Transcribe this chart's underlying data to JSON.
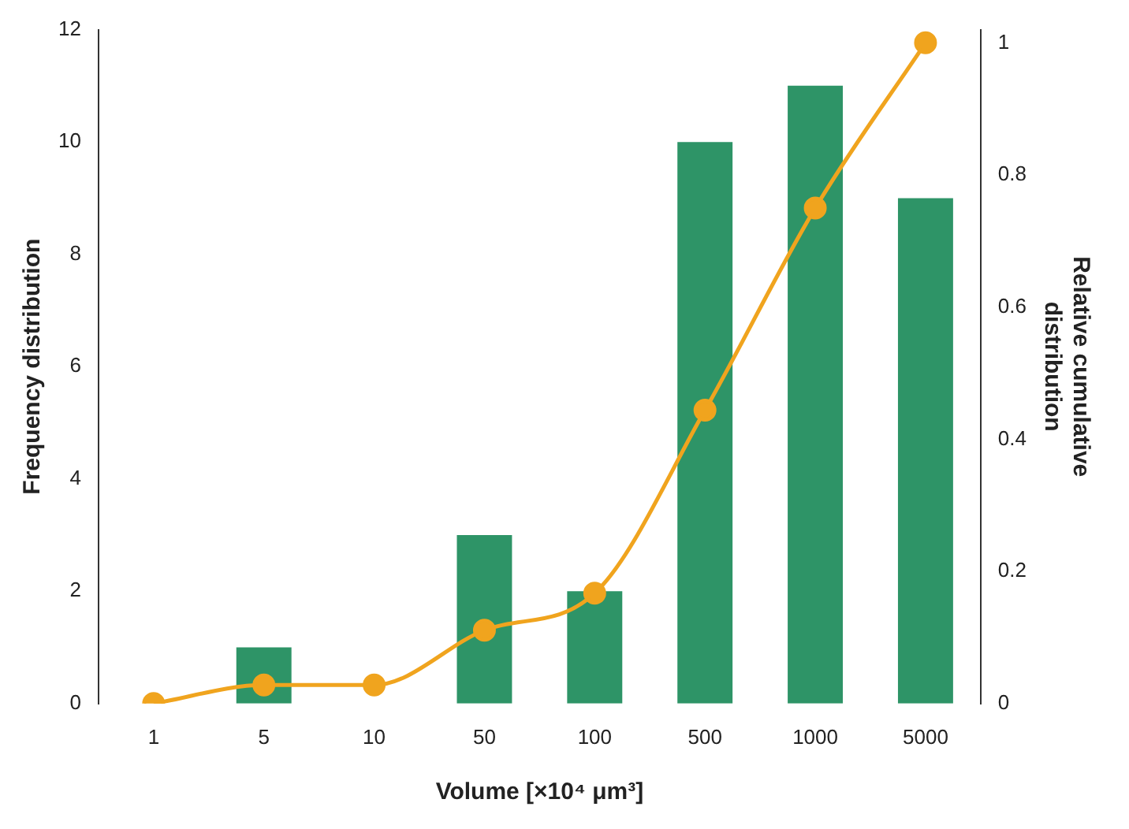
{
  "chart_data": {
    "type": "bar",
    "xlabel": "Volume [×10⁴ μm³]",
    "ylabel": "Frequency distribution",
    "y2label": "Relative cumulative\ndistribution",
    "categories": [
      "1",
      "5",
      "10",
      "50",
      "100",
      "500",
      "1000",
      "5000"
    ],
    "series": [
      {
        "color": "#2e9467",
        "values": [
          0,
          1,
          0,
          3,
          2,
          10,
          11,
          9
        ]
      },
      {
        "type": "line",
        "axis": "y2",
        "color": "#f0a41e",
        "marker": "circle",
        "values": [
          0,
          0.028,
          0.028,
          0.111,
          0.167,
          0.444,
          0.75,
          1
        ]
      }
    ],
    "ylim": [
      0,
      12
    ],
    "yticks": [
      0,
      2,
      4,
      6,
      8,
      10,
      12
    ],
    "y2lim": [
      0,
      1.02
    ],
    "y2ticks": [
      0,
      0.2,
      0.4,
      0.6,
      0.8,
      1
    ],
    "grid": false,
    "legend": false
  }
}
